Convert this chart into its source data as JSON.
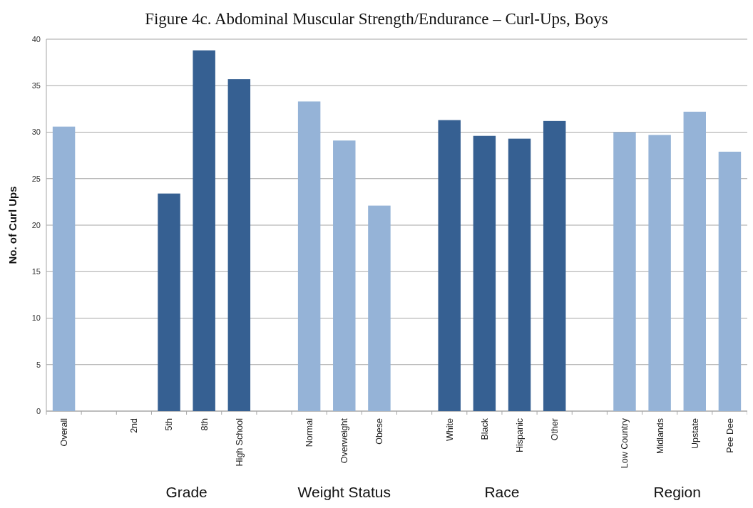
{
  "chart_data": {
    "type": "bar",
    "title": "Figure 4c. Abdominal Muscular Strength/Endurance – Curl-Ups, Boys",
    "ylabel": "No. of Curl Ups",
    "categories": [
      "Overall",
      null,
      "2nd",
      "5th",
      "8th",
      "High School",
      null,
      "Normal",
      "Overweight",
      "Obese",
      null,
      "White",
      "Black",
      "Hispanic",
      "Other",
      null,
      "Low Country",
      "Midlands",
      "Upstate",
      "Pee Dee"
    ],
    "values": [
      30.6,
      null,
      null,
      23.4,
      38.8,
      35.7,
      null,
      33.3,
      29.1,
      22.1,
      null,
      31.3,
      29.6,
      29.3,
      31.2,
      null,
      30.0,
      29.7,
      32.2,
      27.9
    ],
    "colors": [
      "#95b3d7",
      null,
      null,
      "#366092",
      "#366092",
      "#366092",
      null,
      "#95b3d7",
      "#95b3d7",
      "#95b3d7",
      null,
      "#366092",
      "#366092",
      "#366092",
      "#366092",
      null,
      "#95b3d7",
      "#95b3d7",
      "#95b3d7",
      "#95b3d7"
    ],
    "ylim": [
      0,
      40
    ],
    "yticks": [
      0,
      5,
      10,
      15,
      20,
      25,
      30,
      35,
      40
    ],
    "grid": "y",
    "annotations": [
      "Grade",
      "Weight Status",
      "Race",
      "Region"
    ]
  }
}
